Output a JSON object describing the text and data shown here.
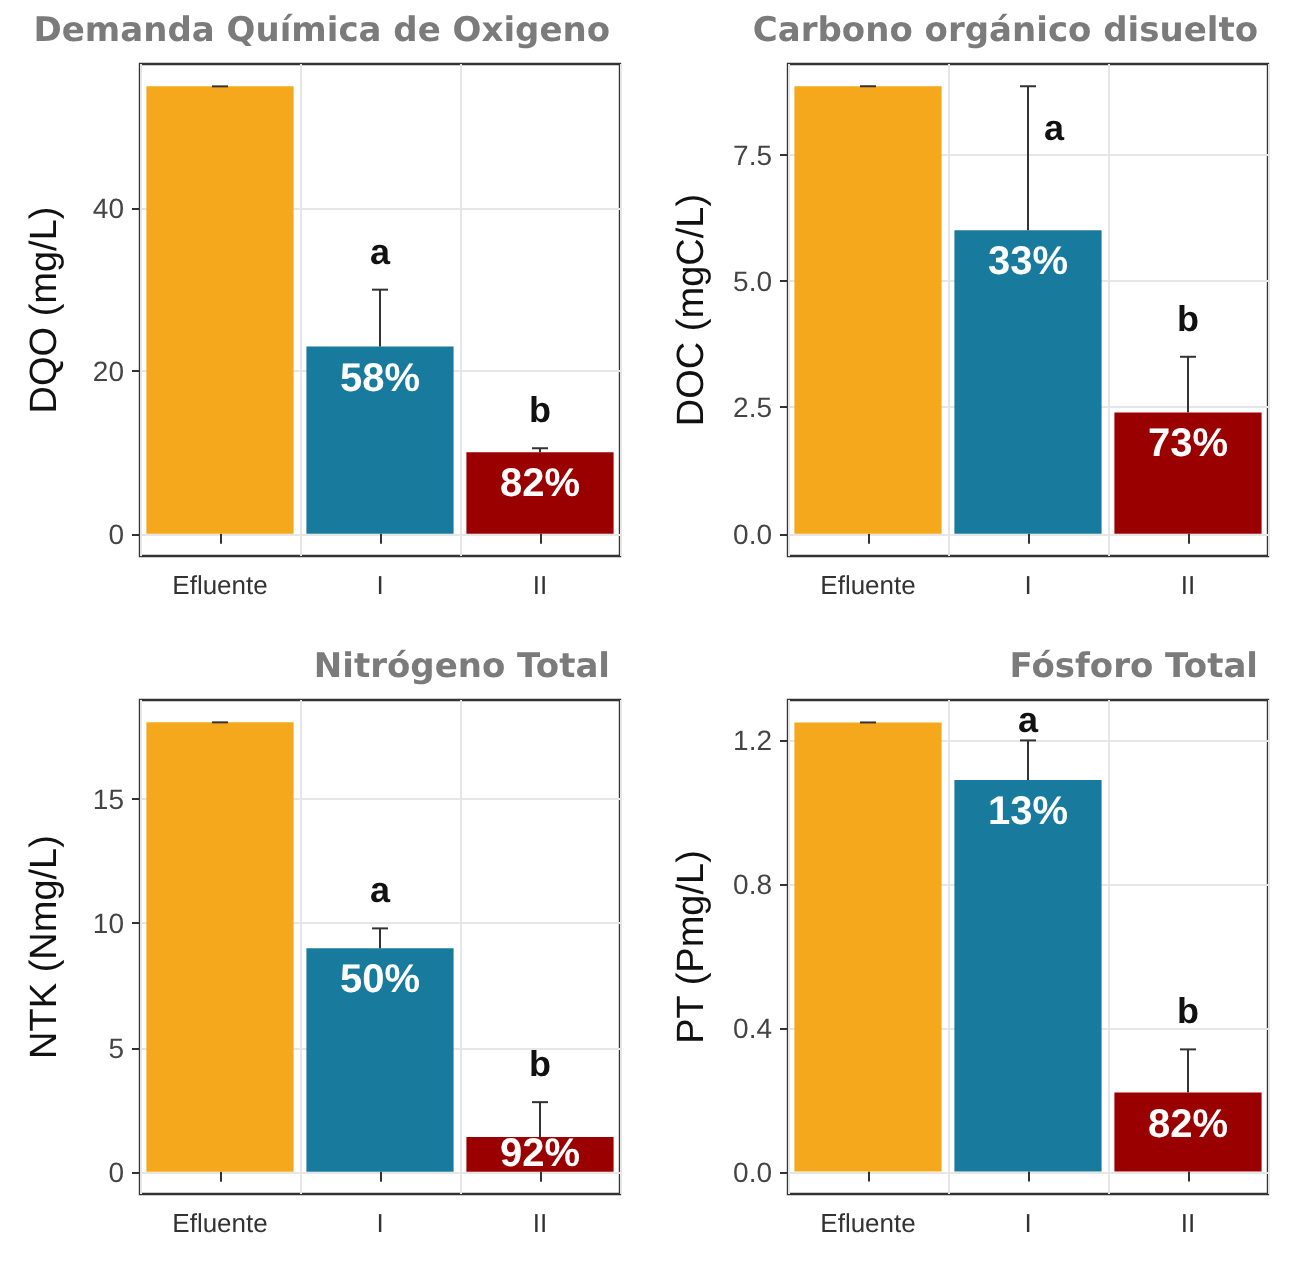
{
  "chart_data": [
    {
      "type": "bar",
      "title": "Demanda Química de Oxigeno",
      "ylabel": "DQO (mg/L)",
      "categories": [
        "Efluente",
        "I",
        "II"
      ],
      "values": [
        55,
        23,
        10
      ],
      "colors": [
        "#f6a81c",
        "#187b9e",
        "#9b0000"
      ],
      "errors": [
        [
          55,
          55
        ],
        [
          23,
          30
        ],
        [
          10,
          10.5
        ]
      ],
      "annotations": [
        {
          "text": "58%",
          "x": "I",
          "y": 23
        },
        {
          "text": "82%",
          "x": "II",
          "y": 10
        },
        "a",
        "b"
      ],
      "ylim": [
        -2.75,
        57.75
      ],
      "yticks": [
        0,
        20,
        40
      ],
      "grid": true
    },
    {
      "type": "bar",
      "title": "Carbono orgánico disuelto",
      "ylabel": "DOC (mgC/L)",
      "categories": [
        "Efluente",
        "I",
        "II"
      ],
      "values": [
        8.85,
        6.0,
        2.4
      ],
      "colors": [
        "#f6a81c",
        "#187b9e",
        "#9b0000"
      ],
      "errors": [
        [
          8.85,
          8.85
        ],
        [
          6.0,
          8.85
        ],
        [
          2.4,
          3.5
        ]
      ],
      "annotations": [
        {
          "text": "33%",
          "x": "I",
          "y": 6.0
        },
        {
          "text": "73%",
          "x": "II",
          "y": 2.4
        },
        "a",
        "b"
      ],
      "ylim": [
        -0.44,
        9.29
      ],
      "yticks": [
        {
          "value": 0,
          "label": "0.0"
        },
        {
          "value": 2.5,
          "label": "2.5"
        },
        {
          "value": 5,
          "label": "5.0"
        },
        {
          "value": 7.5,
          "label": "7.5"
        }
      ],
      "grid": true
    },
    {
      "type": "bar",
      "title": "Nitrógeno Total",
      "ylabel": "NTK (Nmg/L)",
      "categories": [
        "Efluente",
        "I",
        "II"
      ],
      "values": [
        18.1,
        9.0,
        1.4
      ],
      "colors": [
        "#f6a81c",
        "#187b9e",
        "#9b0000"
      ],
      "errors": [
        [
          18.1,
          18.1
        ],
        [
          9.0,
          9.8
        ],
        [
          1.4,
          2.8
        ]
      ],
      "annotations": [
        {
          "text": "50%",
          "x": "I",
          "y": 9.0
        },
        {
          "text": "92%",
          "x": "II",
          "y": 1.4
        },
        "a",
        "b"
      ],
      "ylim": [
        -0.9,
        19.0
      ],
      "yticks": [
        0,
        5,
        10,
        15
      ],
      "grid": true
    },
    {
      "type": "bar",
      "title": "Fósforo Total",
      "ylabel": "PT (Pmg/L)",
      "categories": [
        "Efluente",
        "I",
        "II"
      ],
      "values": [
        1.25,
        1.09,
        0.22
      ],
      "colors": [
        "#f6a81c",
        "#187b9e",
        "#9b0000"
      ],
      "errors": [
        [
          1.25,
          1.25
        ],
        [
          1.09,
          1.2
        ],
        [
          0.22,
          0.34
        ]
      ],
      "annotations": [
        {
          "text": "13%",
          "x": "I",
          "y": 1.09
        },
        {
          "text": "82%",
          "x": "II",
          "y": 0.22
        },
        "a",
        "b"
      ],
      "ylim": [
        -0.0625,
        1.3125
      ],
      "yticks": [
        {
          "value": 0,
          "label": "0.0"
        },
        {
          "value": 0.4,
          "label": "0.4"
        },
        {
          "value": 0.8,
          "label": "0.8"
        },
        {
          "value": 1.2,
          "label": "1.2"
        }
      ],
      "grid": true
    }
  ]
}
